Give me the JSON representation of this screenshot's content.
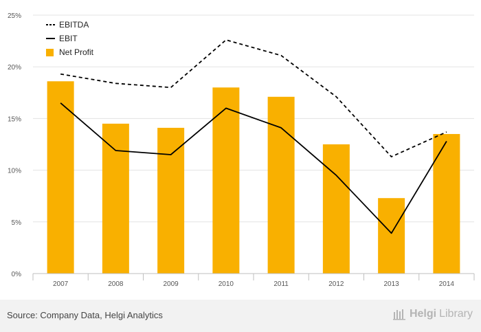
{
  "chart_data": {
    "type": "bar",
    "title": "",
    "xlabel": "",
    "ylabel": "",
    "categories": [
      "2007",
      "2008",
      "2009",
      "2010",
      "2011",
      "2012",
      "2013",
      "2014"
    ],
    "ylim": [
      0,
      25
    ],
    "yticks": [
      "0%",
      "5%",
      "10%",
      "15%",
      "20%",
      "25%"
    ],
    "ytick_values": [
      0,
      5,
      10,
      15,
      20,
      25
    ],
    "grid": true,
    "legend_position": "top-left",
    "series": [
      {
        "name": "EBITDA",
        "type": "line",
        "style": "dashed",
        "color": "#000000",
        "values": [
          19.3,
          18.4,
          18.0,
          22.6,
          21.1,
          17.1,
          11.3,
          13.7
        ]
      },
      {
        "name": "EBIT",
        "type": "line",
        "style": "solid",
        "color": "#000000",
        "values": [
          16.5,
          11.9,
          11.5,
          16.0,
          14.1,
          9.5,
          3.9,
          12.8
        ]
      },
      {
        "name": "Net Profit",
        "type": "bar",
        "color": "#f9b000",
        "values": [
          18.6,
          14.5,
          14.1,
          18.0,
          17.1,
          12.5,
          7.3,
          13.5
        ]
      }
    ]
  },
  "footer": {
    "source": "Source: Company Data, Helgi Analytics",
    "brand_strong": "Helgi",
    "brand_light": "Library"
  }
}
